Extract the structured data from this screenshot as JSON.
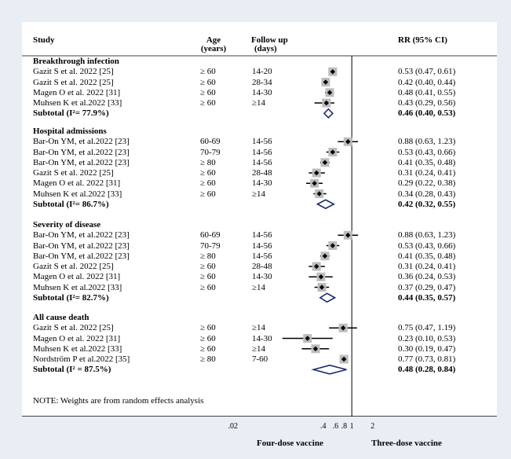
{
  "chart_data": {
    "type": "forest",
    "columns": {
      "study": "Study",
      "age": "Age",
      "age_unit": "(years)",
      "follow": "Follow up",
      "follow_unit": "(days)",
      "rr": "RR (95% CI)"
    },
    "x_scale": "log",
    "xlim": [
      0.02,
      2.5
    ],
    "reference_line": 1,
    "ticks": [
      ".02",
      ".4",
      ".6",
      ".8",
      "1",
      "2"
    ],
    "tick_values": [
      0.02,
      0.4,
      0.6,
      0.8,
      1,
      2
    ],
    "xlabel_left": "Four-dose vaccine",
    "xlabel_right": "Three-dose vaccine",
    "note": "NOTE: Weights are from random effects analysis",
    "groups": [
      {
        "title": "Breakthrough infection",
        "studies": [
          {
            "study": "Gazit S et al. 2022 [25]",
            "age": "≥ 60",
            "follow": "14-20",
            "rr": 0.53,
            "lo": 0.47,
            "hi": 0.61,
            "label": "0.53 (0.47, 0.61)"
          },
          {
            "study": "Gazit S et al. 2022 [25]",
            "age": "≥ 60",
            "follow": "28-34",
            "rr": 0.42,
            "lo": 0.4,
            "hi": 0.44,
            "label": "0.42 (0.40, 0.44)"
          },
          {
            "study": "Magen O et al. 2022 [31]",
            "age": "≥ 60",
            "follow": "14-30",
            "rr": 0.48,
            "lo": 0.41,
            "hi": 0.55,
            "label": "0.48 (0.41, 0.55)"
          },
          {
            "study": "Muhsen K et al.2022 [33]",
            "age": "≥ 60",
            "follow": "≥14",
            "rr": 0.43,
            "lo": 0.29,
            "hi": 0.56,
            "label": "0.43 (0.29, 0.56)"
          }
        ],
        "subtotal": {
          "label": "Subtotal  (I²= 77.9%)",
          "rr": 0.46,
          "lo": 0.4,
          "hi": 0.53,
          "text": "0.46 (0.40, 0.53)"
        }
      },
      {
        "title": "Hospital admissions",
        "studies": [
          {
            "study": "Bar-On YM, et al.2022 [23]",
            "age": "60-69",
            "follow": "14-56",
            "rr": 0.88,
            "lo": 0.63,
            "hi": 1.23,
            "label": "0.88 (0.63, 1.23)"
          },
          {
            "study": "Bar-On YM, et al.2022 [23]",
            "age": "70-79",
            "follow": "14-56",
            "rr": 0.53,
            "lo": 0.43,
            "hi": 0.66,
            "label": "0.53 (0.43, 0.66)"
          },
          {
            "study": "Bar-On YM, et al.2022 [23]",
            "age": "≥ 80",
            "follow": "14-56",
            "rr": 0.41,
            "lo": 0.35,
            "hi": 0.48,
            "label": "0.41 (0.35, 0.48)"
          },
          {
            "study": "Gazit S et al. 2022 [25]",
            "age": "≥ 60",
            "follow": "28-48",
            "rr": 0.31,
            "lo": 0.24,
            "hi": 0.41,
            "label": "0.31 (0.24, 0.41)"
          },
          {
            "study": "Magen O et al. 2022 [31]",
            "age": "≥ 60",
            "follow": "14-30",
            "rr": 0.29,
            "lo": 0.22,
            "hi": 0.38,
            "label": "0.29 (0.22, 0.38)"
          },
          {
            "study": "Muhsen K et al.2022 [33]",
            "age": "≥ 60",
            "follow": "≥14",
            "rr": 0.34,
            "lo": 0.28,
            "hi": 0.43,
            "label": "0.34 (0.28, 0.43)"
          }
        ],
        "subtotal": {
          "label": "Subtotal  (I²= 86.7%)",
          "rr": 0.42,
          "lo": 0.32,
          "hi": 0.55,
          "text": "0.42 (0.32, 0.55)"
        }
      },
      {
        "title": "Severity of disease",
        "studies": [
          {
            "study": "Bar-On YM, et al.2022 [23]",
            "age": "60-69",
            "follow": "14-56",
            "rr": 0.88,
            "lo": 0.63,
            "hi": 1.23,
            "label": "0.88 (0.63, 1.23)"
          },
          {
            "study": "Bar-On YM, et al.2022 [23]",
            "age": "70-79",
            "follow": "14-56",
            "rr": 0.53,
            "lo": 0.43,
            "hi": 0.66,
            "label": "0.53 (0.43, 0.66)"
          },
          {
            "study": "Bar-On YM, et al.2022 [23]",
            "age": "≥ 80",
            "follow": "14-56",
            "rr": 0.41,
            "lo": 0.35,
            "hi": 0.48,
            "label": "0.41 (0.35, 0.48)"
          },
          {
            "study": "Gazit S et al. 2022 [25]",
            "age": "≥ 60",
            "follow": "28-48",
            "rr": 0.31,
            "lo": 0.24,
            "hi": 0.41,
            "label": "0.31 (0.24, 0.41)"
          },
          {
            "study": "Magen O et al. 2022 [31]",
            "age": "≥ 60",
            "follow": "14-30",
            "rr": 0.36,
            "lo": 0.24,
            "hi": 0.53,
            "label": "0.36 (0.24, 0.53)"
          },
          {
            "study": "Muhsen K et al.2022 [33]",
            "age": "≥ 60",
            "follow": "≥14",
            "rr": 0.37,
            "lo": 0.29,
            "hi": 0.47,
            "label": "0.37 (0.29, 0.47)"
          }
        ],
        "subtotal": {
          "label": "Subtotal  (I²= 82.7%)",
          "rr": 0.44,
          "lo": 0.35,
          "hi": 0.57,
          "text": "0.44 (0.35, 0.57)"
        }
      },
      {
        "title": "All cause death",
        "studies": [
          {
            "study": "Gazit S et al. 2022 [25]",
            "age": "≥ 60",
            "follow": "≥14",
            "rr": 0.75,
            "lo": 0.47,
            "hi": 1.19,
            "label": "0.75 (0.47, 1.19)"
          },
          {
            "study": "Magen O et al. 2022 [31]",
            "age": "≥ 60",
            "follow": "14-30",
            "rr": 0.23,
            "lo": 0.1,
            "hi": 0.53,
            "label": "0.23 (0.10, 0.53)"
          },
          {
            "study": "Muhsen K et al.2022 [33]",
            "age": "≥ 60",
            "follow": "≥14",
            "rr": 0.3,
            "lo": 0.19,
            "hi": 0.47,
            "label": "0.30 (0.19, 0.47)"
          },
          {
            "study": "Nordström P et al.2022 [35]",
            "age": "≥ 80",
            "follow": "7-60",
            "rr": 0.77,
            "lo": 0.73,
            "hi": 0.81,
            "label": "0.77 (0.73, 0.81)"
          }
        ],
        "subtotal": {
          "label": "Subtotal  (I² = 87.5%)",
          "rr": 0.48,
          "lo": 0.28,
          "hi": 0.84,
          "text": "0.48 (0.28, 0.84)"
        }
      }
    ]
  }
}
